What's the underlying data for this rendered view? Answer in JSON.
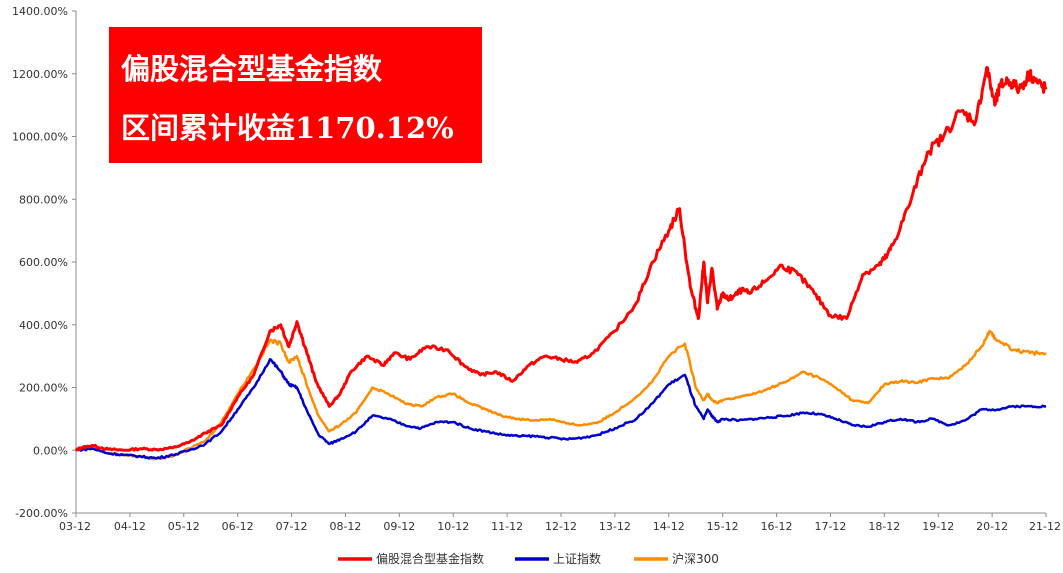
{
  "chart_data": {
    "type": "line",
    "ylim": [
      -200,
      1400
    ],
    "y_ticks": [
      "1400.00%",
      "1200.00%",
      "1000.00%",
      "800.00%",
      "600.00%",
      "400.00%",
      "200.00%",
      "0.00%",
      "-200.00%"
    ],
    "y_tick_values": [
      1400,
      1200,
      1000,
      800,
      600,
      400,
      200,
      0,
      -200
    ],
    "categories": [
      "03-12",
      "04-12",
      "05-12",
      "06-12",
      "07-12",
      "08-12",
      "09-12",
      "10-12",
      "11-12",
      "12-12",
      "13-12",
      "14-12",
      "15-12",
      "16-12",
      "17-12",
      "18-12",
      "19-12",
      "20-12",
      "21-12"
    ],
    "x_ticks": [
      "03-12",
      "04-12",
      "05-12",
      "06-12",
      "07-12",
      "08-12",
      "09-12",
      "10-12",
      "11-12",
      "12-12",
      "13-12",
      "14-12",
      "15-12",
      "16-12",
      "17-12",
      "18-12",
      "19-12",
      "20-12",
      "21-12"
    ],
    "grid": false,
    "legend_position": "bottom",
    "annotation": {
      "lines": [
        "偏股混合型基金指数",
        "区间累计收益1170.12%"
      ],
      "background": "#ff0000",
      "color": "#ffffff"
    },
    "series": [
      {
        "name": "偏股混合型基金指数",
        "color": "#ff0000",
        "x": [
          0,
          0.1,
          0.3,
          0.6,
          0.9,
          1.2,
          1.5,
          1.8,
          2.1,
          2.4,
          2.7,
          3.0,
          3.3,
          3.6,
          3.8,
          3.95,
          4.1,
          4.25,
          4.45,
          4.7,
          4.9,
          5.1,
          5.4,
          5.7,
          5.9,
          6.2,
          6.5,
          6.9,
          7.2,
          7.5,
          7.8,
          8.1,
          8.4,
          8.7,
          9.0,
          9.3,
          9.6,
          10.0,
          10.4,
          10.7,
          11.0,
          11.2,
          11.4,
          11.55,
          11.65,
          11.72,
          11.8,
          11.9,
          12.0,
          12.1,
          12.2,
          12.35,
          12.5,
          12.8,
          13.1,
          13.4,
          13.7,
          14.0,
          14.3,
          14.6,
          14.9,
          15.05,
          15.2,
          15.5,
          15.8,
          16.1,
          16.4,
          16.7,
          16.9,
          17.05,
          17.15,
          17.3,
          17.5,
          17.7,
          17.85,
          18.0
        ],
        "values": [
          0,
          8,
          15,
          3,
          0,
          5,
          2,
          8,
          25,
          55,
          80,
          170,
          240,
          380,
          400,
          330,
          410,
          330,
          220,
          140,
          180,
          250,
          300,
          270,
          310,
          290,
          330,
          320,
          270,
          240,
          250,
          220,
          270,
          300,
          290,
          280,
          310,
          380,
          470,
          600,
          700,
          770,
          520,
          420,
          600,
          470,
          580,
          450,
          500,
          480,
          490,
          510,
          500,
          540,
          590,
          560,
          500,
          430,
          420,
          560,
          590,
          620,
          670,
          800,
          950,
          1000,
          1080,
          1050,
          1220,
          1100,
          1160,
          1180,
          1150,
          1200,
          1170,
          1150
        ]
      },
      {
        "name": "上证指数",
        "color": "#0000cd",
        "x": [
          0,
          0.3,
          0.6,
          0.9,
          1.2,
          1.5,
          1.8,
          2.1,
          2.4,
          2.7,
          3.0,
          3.3,
          3.6,
          3.8,
          3.95,
          4.1,
          4.3,
          4.5,
          4.7,
          4.9,
          5.2,
          5.5,
          5.8,
          6.1,
          6.4,
          6.7,
          7.0,
          7.3,
          7.6,
          7.9,
          8.2,
          8.5,
          8.8,
          9.1,
          9.4,
          9.7,
          10.0,
          10.4,
          10.7,
          11.0,
          11.3,
          11.5,
          11.65,
          11.72,
          11.8,
          11.9,
          12.0,
          12.3,
          12.6,
          12.9,
          13.2,
          13.5,
          13.8,
          14.1,
          14.4,
          14.7,
          15.0,
          15.3,
          15.6,
          15.9,
          16.2,
          16.5,
          16.8,
          17.1,
          17.4,
          17.7,
          18.0
        ],
        "values": [
          0,
          5,
          -10,
          -15,
          -20,
          -25,
          -15,
          0,
          20,
          60,
          130,
          200,
          290,
          250,
          210,
          200,
          120,
          50,
          20,
          35,
          60,
          110,
          100,
          80,
          70,
          90,
          90,
          70,
          60,
          50,
          45,
          45,
          40,
          35,
          40,
          50,
          70,
          100,
          150,
          210,
          240,
          140,
          100,
          130,
          110,
          90,
          100,
          95,
          100,
          105,
          110,
          120,
          115,
          100,
          80,
          75,
          90,
          100,
          90,
          100,
          80,
          95,
          130,
          130,
          140,
          140,
          140
        ]
      },
      {
        "name": "沪深300",
        "color": "#ff8c00",
        "x": [
          0,
          0.3,
          0.6,
          0.9,
          1.2,
          1.5,
          1.8,
          2.1,
          2.4,
          2.7,
          3.0,
          3.3,
          3.6,
          3.8,
          3.95,
          4.1,
          4.3,
          4.5,
          4.7,
          4.9,
          5.2,
          5.5,
          5.8,
          6.1,
          6.4,
          6.7,
          7.0,
          7.3,
          7.6,
          7.9,
          8.2,
          8.5,
          8.8,
          9.1,
          9.4,
          9.7,
          10.0,
          10.4,
          10.7,
          11.0,
          11.3,
          11.5,
          11.65,
          11.72,
          11.8,
          11.9,
          12.0,
          12.3,
          12.6,
          12.9,
          13.2,
          13.5,
          13.8,
          14.1,
          14.4,
          14.7,
          15.0,
          15.3,
          15.6,
          15.9,
          16.2,
          16.5,
          16.8,
          16.95,
          17.1,
          17.4,
          17.7,
          18.0
        ],
        "values": [
          0,
          8,
          -10,
          -15,
          -20,
          -28,
          -18,
          5,
          30,
          90,
          180,
          260,
          350,
          340,
          280,
          300,
          200,
          110,
          60,
          80,
          120,
          200,
          180,
          150,
          140,
          170,
          180,
          150,
          130,
          110,
          100,
          95,
          100,
          85,
          80,
          90,
          120,
          170,
          220,
          300,
          340,
          200,
          160,
          180,
          160,
          150,
          160,
          170,
          180,
          200,
          220,
          250,
          230,
          200,
          160,
          150,
          210,
          220,
          215,
          230,
          230,
          270,
          330,
          380,
          350,
          320,
          310,
          310
        ]
      }
    ]
  }
}
